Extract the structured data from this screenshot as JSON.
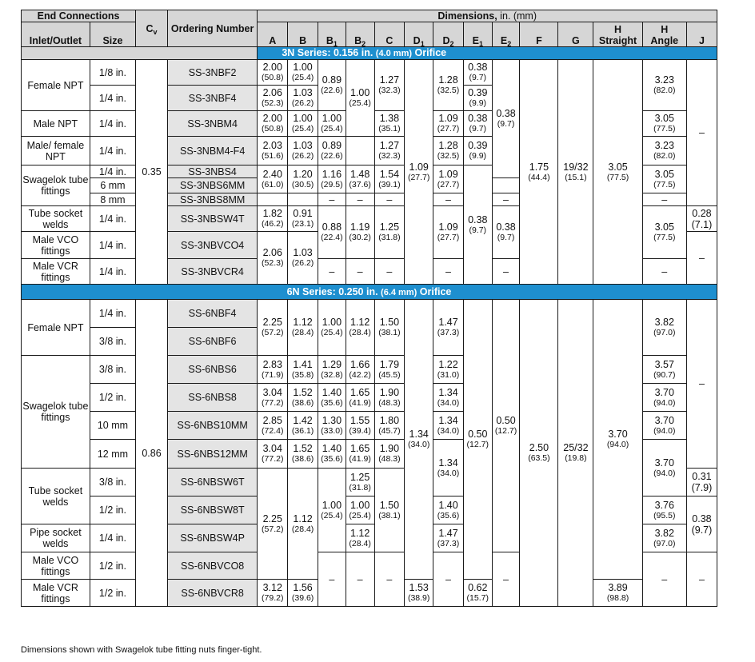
{
  "header": {
    "end_connections": "End Connections",
    "inlet_outlet": "Inlet/Outlet",
    "size": "Size",
    "cv": "C",
    "cv_sub": "v",
    "ordering_number": "Ordering Number",
    "dimensions": "Dimensions,",
    "dimensions_units": " in. (mm)",
    "cols": {
      "A": "A",
      "B": "B",
      "B1": "B",
      "B1s": "1",
      "B2": "B",
      "B2s": "2",
      "C": "C",
      "D1": "D",
      "D1s": "1",
      "D2": "D",
      "D2s": "2",
      "E1": "E",
      "E1s": "1",
      "E2": "E",
      "E2s": "2",
      "F": "F",
      "G": "G",
      "H1": "H",
      "H1b": "Straight",
      "H2": "H",
      "H2b": "Angle",
      "J": "J"
    }
  },
  "series_3n": {
    "label": "3N Series: 0.156 in.",
    "mm": "(4.0 mm)",
    "tail": "Orifice"
  },
  "series_6n": {
    "label": "6N Series: 0.250 in.",
    "mm": "(6.4 mm)",
    "tail": "Orifice"
  },
  "s3": {
    "cv": "0.35",
    "labels": {
      "female_npt": "Female NPT",
      "male_npt": "Male NPT",
      "male_female_npt": "Male/ female NPT",
      "swagelok": "Swagelok tube fittings",
      "tube_socket": "Tube socket welds",
      "male_vco": "Male VCO fittings",
      "male_vcr": "Male VCR fittings"
    },
    "sizes": [
      "1/8 in.",
      "1/4 in.",
      "1/4 in.",
      "1/4 in.",
      "1/4 in.",
      "6 mm",
      "8 mm",
      "1/4 in.",
      "1/4 in.",
      "1/4 in."
    ],
    "ordering": [
      "SS-3NBF2",
      "SS-3NBF4",
      "SS-3NBM4",
      "SS-3NBM4-F4",
      "SS-3NBS4",
      "SS-3NBS6MM",
      "SS-3NBS8MM",
      "SS-3NBSW4T",
      "SS-3NBVCO4",
      "SS-3NBVCR4"
    ],
    "A": [
      [
        "2.00",
        "(50.8)"
      ],
      [
        "2.06",
        "(52.3)"
      ],
      [
        "2.00",
        "(50.8)"
      ],
      [
        "2.03",
        "(51.6)"
      ],
      [
        "2.40",
        "(61.0)"
      ],
      [
        "1.82",
        "(46.2)"
      ],
      [
        "2.06",
        "(52.3)"
      ]
    ],
    "B": [
      [
        "1.00",
        "(25.4)"
      ],
      [
        "1.03",
        "(26.2)"
      ],
      [
        "1.00",
        "(25.4)"
      ],
      [
        "1.03",
        "(26.2)"
      ],
      [
        "1.20",
        "(30.5)"
      ],
      [
        "0.91",
        "(23.1)"
      ],
      [
        "1.03",
        "(26.2)"
      ]
    ],
    "B1": [
      [
        "0.89",
        "(22.6)"
      ],
      [
        "1.00",
        "(25.4)"
      ],
      [
        "0.89",
        "(22.6)"
      ],
      [
        "1.16",
        "(29.5)"
      ],
      [
        "0.88",
        "(22.4)"
      ]
    ],
    "B2": [
      [
        "1.00",
        "(25.4)"
      ],
      [
        "1.48",
        "(37.6)"
      ],
      [
        "1.19",
        "(30.2)"
      ]
    ],
    "C": [
      [
        "1.27",
        "(32.3)"
      ],
      [
        "1.38",
        "(35.1)"
      ],
      [
        "1.27",
        "(32.3)"
      ],
      [
        "1.54",
        "(39.1)"
      ],
      [
        "1.25",
        "(31.8)"
      ]
    ],
    "D1": [
      "1.09",
      "(27.7)"
    ],
    "D2": [
      [
        "1.28",
        "(32.5)"
      ],
      [
        "1.09",
        "(27.7)"
      ],
      [
        "1.28",
        "(32.5)"
      ],
      [
        "1.09",
        "(27.7)"
      ],
      [
        "1.09",
        "(27.7)"
      ]
    ],
    "E1": [
      [
        "0.38",
        "(9.7)"
      ],
      [
        "0.39",
        "(9.9)"
      ],
      [
        "0.38",
        "(9.7)"
      ],
      [
        "0.39",
        "(9.9)"
      ],
      [
        "0.38",
        "(9.7)"
      ]
    ],
    "E2": [
      [
        "0.38",
        "(9.7)"
      ],
      [
        "0.38",
        "(9.7)"
      ]
    ],
    "F": [
      "1.75",
      "(44.4)"
    ],
    "G": [
      "19/32",
      "(15.1)"
    ],
    "H1": [
      "3.05",
      "(77.5)"
    ],
    "H2": [
      [
        "3.23",
        "(82.0)"
      ],
      [
        "3.05",
        "(77.5)"
      ],
      [
        "3.23",
        "(82.0)"
      ],
      [
        "3.05",
        "(77.5)"
      ],
      [
        "3.05",
        "(77.5)"
      ]
    ],
    "J": [
      "0.28",
      "(7.1)"
    ],
    "dash": "–"
  },
  "s6": {
    "cv": "0.86",
    "labels": {
      "female_npt": "Female NPT",
      "swagelok": "Swagelok tube fittings",
      "tube_socket": "Tube socket welds",
      "pipe_socket": "Pipe socket welds",
      "male_vco": "Male VCO fittings",
      "male_vcr": "Male VCR fittings"
    },
    "sizes": [
      "1/4 in.",
      "3/8 in.",
      "3/8 in.",
      "1/2 in.",
      "10 mm",
      "12 mm",
      "3/8 in.",
      "1/2 in.",
      "1/4 in.",
      "1/2 in.",
      "1/2 in."
    ],
    "ordering": [
      "SS-6NBF4",
      "SS-6NBF6",
      "SS-6NBS6",
      "SS-6NBS8",
      "SS-6NBS10MM",
      "SS-6NBS12MM",
      "SS-6NBSW6T",
      "SS-6NBSW8T",
      "SS-6NBSW4P",
      "SS-6NBVCO8",
      "SS-6NBVCR8"
    ],
    "A": [
      [
        "2.25",
        "(57.2)"
      ],
      [
        "2.83",
        "(71.9)"
      ],
      [
        "3.04",
        "(77.2)"
      ],
      [
        "2.85",
        "(72.4)"
      ],
      [
        "3.04",
        "(77.2)"
      ],
      [
        "2.25",
        "(57.2)"
      ],
      [
        "3.12",
        "(79.2)"
      ]
    ],
    "B": [
      [
        "1.12",
        "(28.4)"
      ],
      [
        "1.41",
        "(35.8)"
      ],
      [
        "1.52",
        "(38.6)"
      ],
      [
        "1.42",
        "(36.1)"
      ],
      [
        "1.52",
        "(38.6)"
      ],
      [
        "1.12",
        "(28.4)"
      ],
      [
        "1.56",
        "(39.6)"
      ]
    ],
    "B1": [
      [
        "1.00",
        "(25.4)"
      ],
      [
        "1.29",
        "(32.8)"
      ],
      [
        "1.40",
        "(35.6)"
      ],
      [
        "1.30",
        "(33.0)"
      ],
      [
        "1.40",
        "(35.6)"
      ],
      [
        "1.00",
        "(25.4)"
      ]
    ],
    "B2": [
      [
        "1.12",
        "(28.4)"
      ],
      [
        "1.66",
        "(42.2)"
      ],
      [
        "1.65",
        "(41.9)"
      ],
      [
        "1.55",
        "(39.4)"
      ],
      [
        "1.65",
        "(41.9)"
      ],
      [
        "1.25",
        "(31.8)"
      ],
      [
        "1.00",
        "(25.4)"
      ],
      [
        "1.12",
        "(28.4)"
      ]
    ],
    "C": [
      [
        "1.50",
        "(38.1)"
      ],
      [
        "1.79",
        "(45.5)"
      ],
      [
        "1.90",
        "(48.3)"
      ],
      [
        "1.80",
        "(45.7)"
      ],
      [
        "1.90",
        "(48.3)"
      ],
      [
        "1.50",
        "(38.1)"
      ]
    ],
    "D1": [
      [
        "1.34",
        "(34.0)"
      ],
      [
        "1.53",
        "(38.9)"
      ]
    ],
    "D2": [
      [
        "1.47",
        "(37.3)"
      ],
      [
        "1.22",
        "(31.0)"
      ],
      [
        "1.34",
        "(34.0)"
      ],
      [
        "1.34",
        "(34.0)"
      ],
      [
        "1.34",
        "(34.0)"
      ],
      [
        "1.40",
        "(35.6)"
      ],
      [
        "1.47",
        "(37.3)"
      ]
    ],
    "E1": [
      [
        "0.50",
        "(12.7)"
      ],
      [
        "0.62",
        "(15.7)"
      ]
    ],
    "E2": [
      "0.50",
      "(12.7)"
    ],
    "F": [
      "2.50",
      "(63.5)"
    ],
    "G": [
      "25/32",
      "(19.8)"
    ],
    "H1": [
      [
        "3.70",
        "(94.0)"
      ],
      [
        "3.89",
        "(98.8)"
      ]
    ],
    "H2": [
      [
        "3.82",
        "(97.0)"
      ],
      [
        "3.57",
        "(90.7)"
      ],
      [
        "3.70",
        "(94.0)"
      ],
      [
        "3.70",
        "(94.0)"
      ],
      [
        "3.70",
        "(94.0)"
      ],
      [
        "3.76",
        "(95.5)"
      ],
      [
        "3.82",
        "(97.0)"
      ]
    ],
    "J": [
      [
        "0.31",
        "(7.9)"
      ],
      [
        "0.38",
        "(9.7)"
      ]
    ],
    "dash": "–"
  },
  "footnote": "Dimensions shown with Swagelok tube fitting nuts finger-tight."
}
